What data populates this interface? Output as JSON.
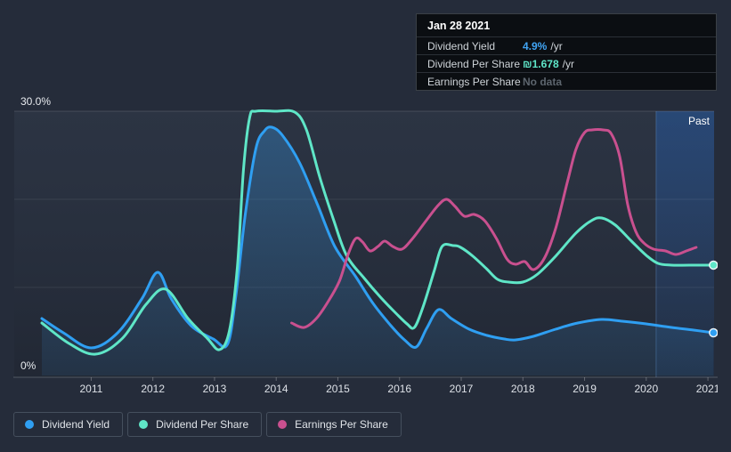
{
  "tooltip": {
    "date": "Jan 28 2021",
    "rows": [
      {
        "label": "Dividend Yield",
        "value": "4.9%",
        "unit": "/yr",
        "color": "#41a4f4"
      },
      {
        "label": "Dividend Per Share",
        "value": "₪1.678",
        "unit": "/yr",
        "color": "#5fe6c9"
      },
      {
        "label": "Earnings Per Share",
        "value": "No data",
        "unit": "",
        "color": "#5d656e"
      }
    ]
  },
  "legend": {
    "items": [
      {
        "label": "Dividend Yield",
        "color": "#2f9ff2"
      },
      {
        "label": "Dividend Per Share",
        "color": "#5fe6c7"
      },
      {
        "label": "Earnings Per Share",
        "color": "#c9508f"
      }
    ]
  },
  "colors": {
    "page_background": "#252c3a",
    "tooltip_background": "#0b0e12",
    "dividend_yield_line": "#2f9ff2",
    "dividend_per_share_line": "#5fe6c7",
    "earnings_per_share_line": "#c9508f",
    "past_band_blue": "#2a5ca8"
  },
  "chart_data": {
    "type": "line",
    "title": "",
    "xlabel": "",
    "ylabel": "",
    "xlim": [
      2010.2,
      2021.1
    ],
    "ylim": [
      0,
      30
    ],
    "grid": true,
    "grid_values": [
      30,
      20,
      10
    ],
    "y_labels": [
      {
        "value": 30,
        "label": "30.0%"
      },
      {
        "value": 0,
        "label": "0%"
      }
    ],
    "x_ticks": [
      2011,
      2012,
      2013,
      2014,
      2015,
      2016,
      2017,
      2018,
      2019,
      2020,
      2021
    ],
    "past_region": {
      "from": 2020.16,
      "to": 2021.1,
      "label": "Past"
    },
    "legend_position": "bottom-left",
    "note": "y values are percent on the Dividend Yield axis; Dividend Per Share and Earnings Per Share are plotted rescaled onto the same axis. Tooltip values at Jan 28 2021: yield 4.9%/yr, DPS ₪1.678/yr, EPS no data.",
    "series": [
      {
        "name": "Dividend Yield",
        "color": "#2f9ff2",
        "area_fill": true,
        "end_dot": true,
        "points": [
          [
            2010.2,
            6.46
          ],
          [
            2010.55,
            4.85
          ],
          [
            2011.0,
            3.13
          ],
          [
            2011.43,
            4.85
          ],
          [
            2011.82,
            8.69
          ],
          [
            2012.08,
            11.72
          ],
          [
            2012.3,
            8.69
          ],
          [
            2012.62,
            5.66
          ],
          [
            2012.98,
            4.14
          ],
          [
            2013.21,
            3.54
          ],
          [
            2013.35,
            9.29
          ],
          [
            2013.5,
            18.38
          ],
          [
            2013.67,
            25.76
          ],
          [
            2013.81,
            27.78
          ],
          [
            2013.93,
            28.18
          ],
          [
            2014.1,
            27.27
          ],
          [
            2014.38,
            24.14
          ],
          [
            2014.67,
            19.39
          ],
          [
            2014.95,
            14.65
          ],
          [
            2015.29,
            11.21
          ],
          [
            2015.57,
            8.18
          ],
          [
            2015.86,
            5.66
          ],
          [
            2016.08,
            4.04
          ],
          [
            2016.27,
            3.23
          ],
          [
            2016.44,
            5.35
          ],
          [
            2016.63,
            7.47
          ],
          [
            2016.84,
            6.46
          ],
          [
            2017.13,
            5.25
          ],
          [
            2017.42,
            4.55
          ],
          [
            2017.7,
            4.14
          ],
          [
            2017.88,
            4.04
          ],
          [
            2018.17,
            4.44
          ],
          [
            2018.53,
            5.25
          ],
          [
            2018.89,
            5.96
          ],
          [
            2019.28,
            6.36
          ],
          [
            2019.61,
            6.16
          ],
          [
            2020.0,
            5.86
          ],
          [
            2020.41,
            5.45
          ],
          [
            2020.77,
            5.15
          ],
          [
            2021.09,
            4.85
          ]
        ]
      },
      {
        "name": "Dividend Per Share",
        "color": "#5fe6c7",
        "area_fill": false,
        "end_dot": true,
        "points": [
          [
            2010.2,
            5.96
          ],
          [
            2010.64,
            3.64
          ],
          [
            2011.07,
            2.42
          ],
          [
            2011.51,
            4.24
          ],
          [
            2011.89,
            8.08
          ],
          [
            2012.21,
            9.8
          ],
          [
            2012.57,
            6.46
          ],
          [
            2012.88,
            4.24
          ],
          [
            2013.08,
            2.93
          ],
          [
            2013.24,
            5.05
          ],
          [
            2013.37,
            12.32
          ],
          [
            2013.47,
            23.43
          ],
          [
            2013.57,
            29.29
          ],
          [
            2013.67,
            30.0
          ],
          [
            2013.99,
            30.0
          ],
          [
            2014.3,
            29.9
          ],
          [
            2014.49,
            27.88
          ],
          [
            2014.71,
            22.42
          ],
          [
            2014.93,
            17.68
          ],
          [
            2015.14,
            13.64
          ],
          [
            2015.43,
            11.01
          ],
          [
            2015.69,
            8.89
          ],
          [
            2015.94,
            7.07
          ],
          [
            2016.12,
            5.86
          ],
          [
            2016.24,
            5.45
          ],
          [
            2016.38,
            7.78
          ],
          [
            2016.56,
            11.82
          ],
          [
            2016.69,
            14.65
          ],
          [
            2016.87,
            14.75
          ],
          [
            2016.99,
            14.55
          ],
          [
            2017.19,
            13.54
          ],
          [
            2017.41,
            12.12
          ],
          [
            2017.59,
            10.91
          ],
          [
            2017.77,
            10.61
          ],
          [
            2018.0,
            10.61
          ],
          [
            2018.24,
            11.52
          ],
          [
            2018.53,
            13.54
          ],
          [
            2018.86,
            16.16
          ],
          [
            2019.11,
            17.58
          ],
          [
            2019.28,
            17.88
          ],
          [
            2019.5,
            17.07
          ],
          [
            2019.76,
            15.25
          ],
          [
            2020.0,
            13.64
          ],
          [
            2020.19,
            12.73
          ],
          [
            2020.41,
            12.53
          ],
          [
            2020.7,
            12.53
          ],
          [
            2021.09,
            12.53
          ]
        ]
      },
      {
        "name": "Earnings Per Share",
        "color": "#c9508f",
        "area_fill": false,
        "end_dot": false,
        "points": [
          [
            2014.25,
            5.96
          ],
          [
            2014.45,
            5.45
          ],
          [
            2014.65,
            6.46
          ],
          [
            2014.85,
            8.48
          ],
          [
            2015.03,
            10.81
          ],
          [
            2015.17,
            13.84
          ],
          [
            2015.29,
            15.56
          ],
          [
            2015.4,
            15.15
          ],
          [
            2015.52,
            14.14
          ],
          [
            2015.65,
            14.65
          ],
          [
            2015.76,
            15.25
          ],
          [
            2015.89,
            14.65
          ],
          [
            2016.04,
            14.34
          ],
          [
            2016.2,
            15.45
          ],
          [
            2016.41,
            17.37
          ],
          [
            2016.61,
            19.19
          ],
          [
            2016.76,
            20.0
          ],
          [
            2016.9,
            19.19
          ],
          [
            2017.05,
            18.08
          ],
          [
            2017.21,
            18.28
          ],
          [
            2017.38,
            17.58
          ],
          [
            2017.57,
            15.56
          ],
          [
            2017.74,
            13.23
          ],
          [
            2017.88,
            12.63
          ],
          [
            2018.03,
            12.93
          ],
          [
            2018.17,
            12.02
          ],
          [
            2018.35,
            13.33
          ],
          [
            2018.53,
            16.67
          ],
          [
            2018.72,
            21.92
          ],
          [
            2018.86,
            25.66
          ],
          [
            2019.0,
            27.58
          ],
          [
            2019.12,
            27.88
          ],
          [
            2019.3,
            27.88
          ],
          [
            2019.43,
            27.47
          ],
          [
            2019.57,
            24.85
          ],
          [
            2019.7,
            19.39
          ],
          [
            2019.83,
            16.36
          ],
          [
            2019.96,
            15.05
          ],
          [
            2020.12,
            14.34
          ],
          [
            2020.31,
            14.14
          ],
          [
            2020.48,
            13.74
          ],
          [
            2020.65,
            14.14
          ],
          [
            2020.81,
            14.55
          ]
        ]
      }
    ]
  }
}
